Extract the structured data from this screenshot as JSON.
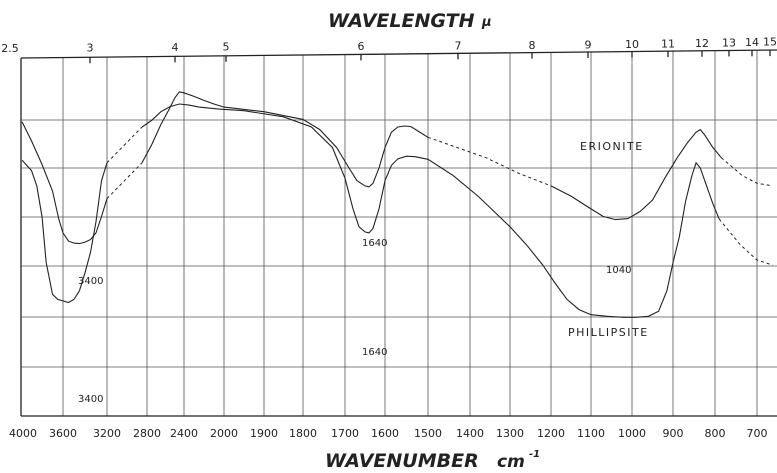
{
  "chart_data": {
    "type": "line",
    "title_top": "WAVELENGTH",
    "title_top_unit": "μ",
    "title_bottom": "WAVENUMBER",
    "title_bottom_unit": "cm",
    "title_bottom_exp": "-1",
    "top_ticks": [
      "2.5",
      "3",
      "4",
      "5",
      "6",
      "7",
      "8",
      "9",
      "10",
      "11",
      "12",
      "13",
      "14",
      "15"
    ],
    "bottom_ticks": [
      "4000",
      "3600",
      "3200",
      "2800",
      "2400",
      "2000",
      "1900",
      "1800",
      "1700",
      "1600",
      "1500",
      "1400",
      "1300",
      "1200",
      "1100",
      "1000",
      "900",
      "800",
      "700"
    ],
    "grid": true,
    "series": [
      {
        "name": "ERIONITE",
        "points": [
          [
            3990,
            1.25
          ],
          [
            3900,
            1.62
          ],
          [
            3800,
            2.08
          ],
          [
            3700,
            2.6
          ],
          [
            3640,
            3.15
          ],
          [
            3600,
            3.42
          ],
          [
            3550,
            3.58
          ],
          [
            3500,
            3.62
          ],
          [
            3450,
            3.63
          ],
          [
            3400,
            3.6
          ],
          [
            3350,
            3.55
          ],
          [
            3300,
            3.42
          ],
          [
            3250,
            3.1
          ],
          [
            3200,
            2.75
          ],
          [
            2850,
            2.05
          ],
          [
            2750,
            1.7
          ],
          [
            2650,
            1.3
          ],
          [
            2560,
            1.0
          ],
          [
            2500,
            0.78
          ],
          [
            2450,
            0.66
          ],
          [
            2400,
            0.68
          ],
          [
            2300,
            0.75
          ],
          [
            2200,
            0.83
          ],
          [
            2100,
            0.9
          ],
          [
            2000,
            0.96
          ],
          [
            1900,
            1.05
          ],
          [
            1800,
            1.2
          ],
          [
            1760,
            1.4
          ],
          [
            1720,
            1.75
          ],
          [
            1690,
            2.15
          ],
          [
            1670,
            2.4
          ],
          [
            1650,
            2.5
          ],
          [
            1640,
            2.52
          ],
          [
            1630,
            2.45
          ],
          [
            1615,
            2.15
          ],
          [
            1600,
            1.75
          ],
          [
            1585,
            1.45
          ],
          [
            1570,
            1.35
          ],
          [
            1555,
            1.33
          ],
          [
            1540,
            1.34
          ],
          [
            1525,
            1.42
          ],
          [
            1500,
            1.55
          ],
          [
            1360,
            1.95
          ],
          [
            1280,
            2.25
          ],
          [
            1200,
            2.5
          ],
          [
            1150,
            2.7
          ],
          [
            1100,
            2.95
          ],
          [
            1070,
            3.1
          ],
          [
            1040,
            3.16
          ],
          [
            1010,
            3.14
          ],
          [
            980,
            3.0
          ],
          [
            950,
            2.78
          ],
          [
            920,
            2.35
          ],
          [
            890,
            1.95
          ],
          [
            865,
            1.65
          ],
          [
            845,
            1.45
          ],
          [
            835,
            1.4
          ],
          [
            825,
            1.5
          ],
          [
            805,
            1.75
          ],
          [
            785,
            1.95
          ],
          [
            735,
            2.3
          ],
          [
            700,
            2.45
          ],
          [
            665,
            2.5
          ]
        ],
        "dashed_ranges": [
          [
            3200,
            2850
          ],
          [
            1500,
            1200
          ],
          [
            785,
            665
          ]
        ]
      },
      {
        "name": "PHILLIPSITE",
        "points": [
          [
            3990,
            2.0
          ],
          [
            3900,
            2.2
          ],
          [
            3850,
            2.5
          ],
          [
            3800,
            3.1
          ],
          [
            3760,
            4.0
          ],
          [
            3700,
            4.62
          ],
          [
            3650,
            4.72
          ],
          [
            3600,
            4.75
          ],
          [
            3550,
            4.78
          ],
          [
            3500,
            4.72
          ],
          [
            3450,
            4.55
          ],
          [
            3400,
            4.2
          ],
          [
            3350,
            3.8
          ],
          [
            3300,
            3.2
          ],
          [
            3250,
            2.4
          ],
          [
            3200,
            2.05
          ],
          [
            2850,
            1.35
          ],
          [
            2750,
            1.22
          ],
          [
            2650,
            1.05
          ],
          [
            2550,
            0.95
          ],
          [
            2450,
            0.9
          ],
          [
            2350,
            0.92
          ],
          [
            2250,
            0.96
          ],
          [
            2150,
            0.98
          ],
          [
            2050,
            1.0
          ],
          [
            1950,
            1.03
          ],
          [
            1850,
            1.15
          ],
          [
            1780,
            1.35
          ],
          [
            1730,
            1.75
          ],
          [
            1700,
            2.35
          ],
          [
            1680,
            2.95
          ],
          [
            1665,
            3.3
          ],
          [
            1650,
            3.4
          ],
          [
            1640,
            3.42
          ],
          [
            1630,
            3.33
          ],
          [
            1615,
            2.95
          ],
          [
            1600,
            2.4
          ],
          [
            1585,
            2.1
          ],
          [
            1570,
            1.97
          ],
          [
            1550,
            1.92
          ],
          [
            1530,
            1.93
          ],
          [
            1500,
            1.98
          ],
          [
            1440,
            2.3
          ],
          [
            1380,
            2.7
          ],
          [
            1340,
            3.0
          ],
          [
            1300,
            3.3
          ],
          [
            1260,
            3.65
          ],
          [
            1220,
            4.05
          ],
          [
            1190,
            4.4
          ],
          [
            1160,
            4.72
          ],
          [
            1130,
            4.92
          ],
          [
            1100,
            5.02
          ],
          [
            1060,
            5.05
          ],
          [
            1020,
            5.07
          ],
          [
            990,
            5.07
          ],
          [
            960,
            5.05
          ],
          [
            935,
            4.95
          ],
          [
            915,
            4.55
          ],
          [
            900,
            4.0
          ],
          [
            885,
            3.5
          ],
          [
            870,
            2.8
          ],
          [
            855,
            2.3
          ],
          [
            845,
            2.05
          ],
          [
            835,
            2.15
          ],
          [
            820,
            2.5
          ],
          [
            805,
            2.85
          ],
          [
            790,
            3.15
          ],
          [
            740,
            3.65
          ],
          [
            700,
            3.95
          ],
          [
            665,
            4.05
          ]
        ],
        "dashed_ranges": [
          [
            3200,
            2850
          ],
          [
            790,
            665
          ]
        ]
      }
    ],
    "annotations": [
      "3400",
      "3400",
      "1640",
      "1640",
      "1040"
    ]
  }
}
